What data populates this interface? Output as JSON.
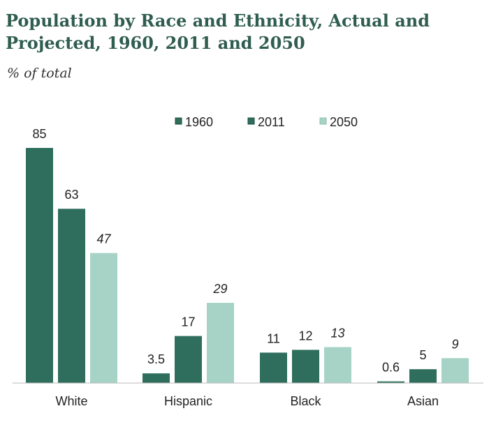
{
  "chart_data": {
    "type": "bar",
    "title": "Population by Race and Ethnicity, Actual and Projected, 1960, 2011 and 2050",
    "subtitle": "% of total",
    "categories": [
      "White",
      "Hispanic",
      "Black",
      "Asian"
    ],
    "series": [
      {
        "name": "1960",
        "color": "#2f6e5c",
        "values": [
          85,
          3.5,
          11,
          0.6
        ],
        "labels": [
          "85",
          "3.5",
          "11",
          "0.6"
        ],
        "italic": false
      },
      {
        "name": "2011",
        "color": "#2f6e5c",
        "values": [
          63,
          17,
          12,
          5
        ],
        "labels": [
          "63",
          "17",
          "12",
          "5"
        ],
        "italic": false
      },
      {
        "name": "2050",
        "color": "#a6d3c6",
        "values": [
          47,
          29,
          13,
          9
        ],
        "labels": [
          "47",
          "29",
          "13",
          "9"
        ],
        "italic": true
      }
    ],
    "ylim": [
      0,
      85
    ],
    "xlabel": "",
    "ylabel": "",
    "grid": false,
    "legend_position": "top-center"
  }
}
